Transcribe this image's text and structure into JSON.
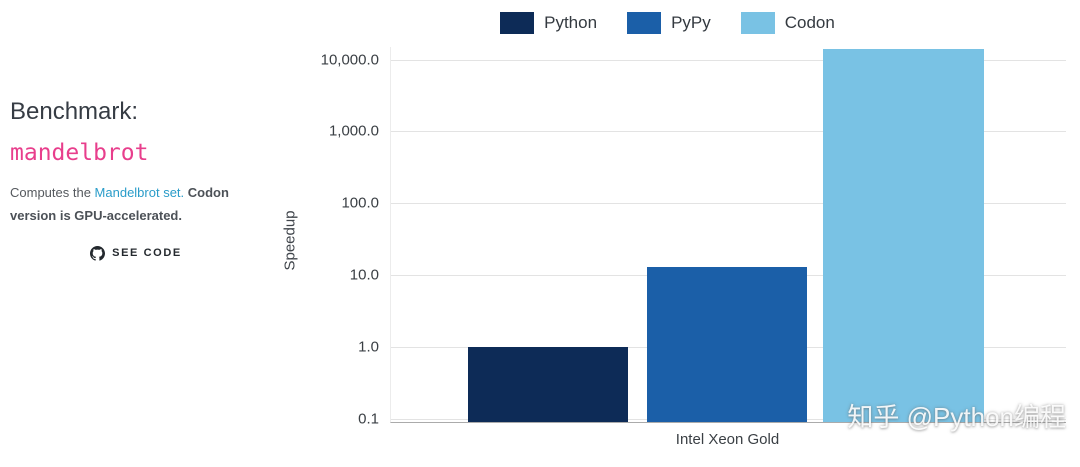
{
  "left_panel": {
    "heading": "Benchmark:",
    "benchmark_name": "mandelbrot",
    "description_prefix": "Computes the ",
    "description_link": "Mandelbrot set.",
    "description_bold": " Codon version is GPU-accelerated.",
    "see_code_label": "SEE CODE"
  },
  "chart_data": {
    "type": "bar",
    "title": "",
    "xlabel": "",
    "ylabel": "Speedup",
    "yscale": "log",
    "ylim": [
      0.09,
      15000
    ],
    "grid": true,
    "legend_position": "top",
    "categories": [
      "Intel Xeon Gold"
    ],
    "series": [
      {
        "name": "Python",
        "values": [
          1.0
        ],
        "color": "#0d2b57"
      },
      {
        "name": "PyPy",
        "values": [
          13.0
        ],
        "color": "#1b5fa8"
      },
      {
        "name": "Codon",
        "values": [
          14000
        ],
        "color": "#79c2e4"
      }
    ],
    "yticks": [
      {
        "label": "10,000.0",
        "value": 10000
      },
      {
        "label": "1,000.0",
        "value": 1000
      },
      {
        "label": "100.0",
        "value": 100
      },
      {
        "label": "10.0",
        "value": 10
      },
      {
        "label": "1.0",
        "value": 1
      },
      {
        "label": "0.1",
        "value": 0.1
      }
    ]
  },
  "watermark": {
    "text": "知乎 @Python编程"
  }
}
